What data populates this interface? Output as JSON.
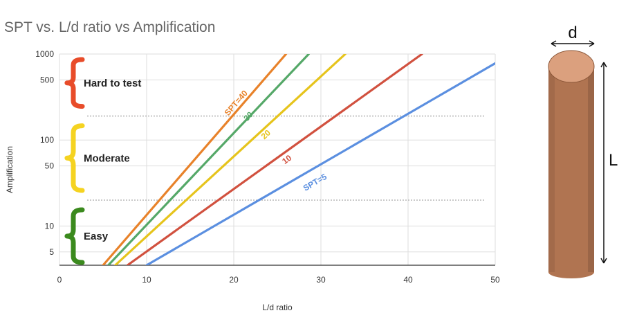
{
  "title": "SPT vs. L/d ratio vs Amplification",
  "chart_data": {
    "type": "line",
    "title": "SPT vs. L/d ratio vs Amplification",
    "xlabel": "L/d ratio",
    "ylabel": "Amplification",
    "xlim": [
      0,
      50
    ],
    "ylim": [
      3.5,
      1000
    ],
    "y_scale": "log",
    "x_ticks": [
      0,
      10,
      20,
      30,
      40,
      50
    ],
    "y_ticks": [
      5,
      10,
      50,
      100,
      500,
      1000
    ],
    "grid": true,
    "series": [
      {
        "name": "SPT=40",
        "color": "#e8822a",
        "x": [
          5,
          26
        ],
        "y": [
          3.5,
          1000
        ]
      },
      {
        "name": "30",
        "color": "#55a868",
        "x": [
          5.6,
          28.6
        ],
        "y": [
          3.5,
          1000
        ]
      },
      {
        "name": "20",
        "color": "#e6c41c",
        "x": [
          6.4,
          32.8
        ],
        "y": [
          3.5,
          1000
        ]
      },
      {
        "name": "10",
        "color": "#d1513f",
        "x": [
          7.8,
          41.6
        ],
        "y": [
          3.5,
          1000
        ]
      },
      {
        "name": "SPT=5",
        "color": "#5b8fe0",
        "x": [
          10,
          50
        ],
        "y": [
          3.5,
          780
        ]
      }
    ],
    "zones": [
      {
        "label": "Hard to test",
        "color": "#e84c2a",
        "ymin": 190,
        "ymax": 1000
      },
      {
        "label": "Moderate",
        "color": "#f5d321",
        "ymin": 20,
        "ymax": 190
      },
      {
        "label": "Easy",
        "color": "#3b8a1e",
        "ymin": 3.5,
        "ymax": 20
      }
    ],
    "zone_boundaries": [
      190,
      20
    ]
  },
  "diagram": {
    "diameter_label": "d",
    "length_label": "L",
    "pile_color": "#b07451",
    "pile_top_color": "#dba07e"
  }
}
